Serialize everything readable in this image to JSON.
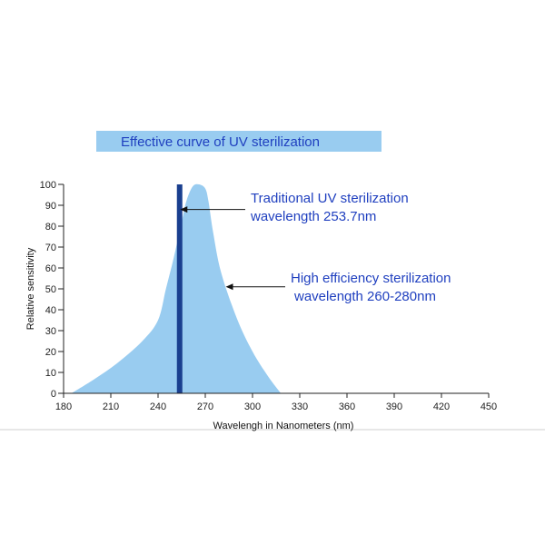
{
  "chart_data": {
    "type": "area",
    "title": "Effective curve of UV sterilization",
    "xlabel": "Wavelengh in Nanometers (nm)",
    "ylabel": "Relative sensitivity",
    "xlim": [
      180,
      450
    ],
    "ylim": [
      0,
      100
    ],
    "x_ticks": [
      180,
      210,
      240,
      270,
      300,
      330,
      360,
      390,
      420,
      450
    ],
    "y_ticks": [
      0,
      10,
      20,
      30,
      40,
      50,
      60,
      70,
      80,
      90,
      100
    ],
    "grid": false,
    "series": [
      {
        "x": [
          185,
          200,
          215,
          230,
          240,
          245,
          250,
          255,
          258,
          262,
          266,
          270,
          272,
          275,
          280,
          290,
          300,
          310,
          318
        ],
        "y": [
          0,
          7,
          15,
          25,
          35,
          50,
          65,
          82,
          92,
          99,
          100,
          98,
          92,
          77,
          58,
          36,
          20,
          8,
          0
        ]
      }
    ],
    "reference_line": {
      "x": 253.7,
      "y_from": 0,
      "y_to": 100
    },
    "annotations": [
      {
        "lines": [
          "Traditional UV sterilization",
          "wavelength 253.7nm"
        ],
        "target": {
          "x": 254,
          "y": 88
        }
      },
      {
        "lines": [
          "High efficiency sterilization",
          "wavelength 260-280nm"
        ],
        "target": {
          "x": 283,
          "y": 51
        }
      }
    ],
    "colors": {
      "area_fill": "#99ccf0",
      "reference_line": "#1a3f8f",
      "title_band": "#99ccf0",
      "title_text": "#1f3fbf",
      "annotation_text": "#1f3fbf",
      "axis": "#222222",
      "arrow": "#111111"
    }
  }
}
